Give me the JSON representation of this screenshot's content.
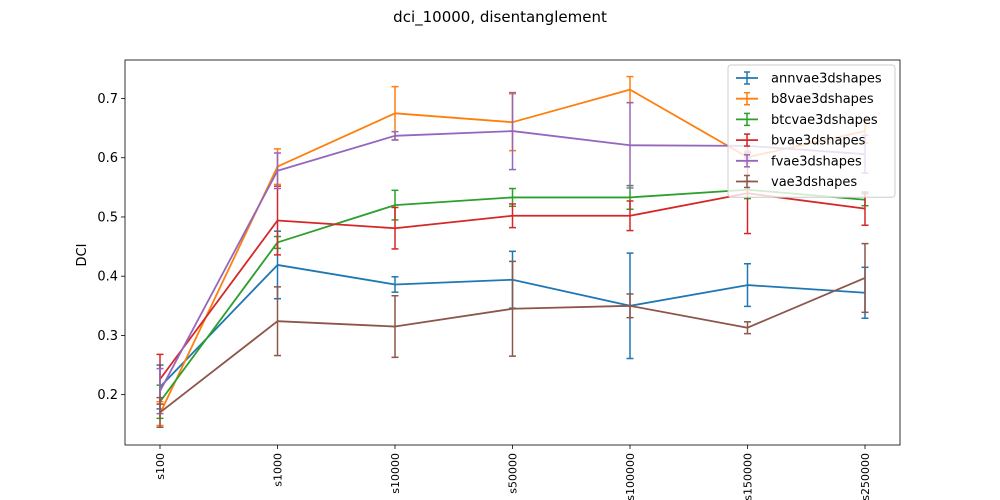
{
  "chart_data": {
    "type": "line",
    "title": "dci_10000, disentanglement",
    "xlabel": "",
    "ylabel": "DCI",
    "categories": [
      "s100",
      "s1000",
      "s10000",
      "s50000",
      "s100000",
      "s150000",
      "s250000"
    ],
    "ylim": [
      0.115,
      0.765
    ],
    "yticks": [
      0.2,
      0.3,
      0.4,
      0.5,
      0.6,
      0.7
    ],
    "ytick_labels": [
      "0.2",
      "0.3",
      "0.4",
      "0.5",
      "0.6",
      "0.7"
    ],
    "grid": false,
    "legend_position": "top-right",
    "series": [
      {
        "name": "annvae3dshapes",
        "color": "#1f77b4",
        "values": [
          0.213,
          0.419,
          0.386,
          0.394,
          0.35,
          0.385,
          0.372
        ],
        "errors": [
          0.037,
          0.057,
          0.013,
          0.048,
          0.089,
          0.036,
          0.043
        ]
      },
      {
        "name": "b8vae3dshapes",
        "color": "#ff7f0e",
        "values": [
          0.168,
          0.585,
          0.675,
          0.66,
          0.715,
          0.601,
          0.645
        ],
        "errors": [
          0.02,
          0.03,
          0.045,
          0.048,
          0.022,
          0.01,
          0.02
        ]
      },
      {
        "name": "btcvae3dshapes",
        "color": "#2ca02c",
        "values": [
          0.188,
          0.457,
          0.52,
          0.533,
          0.533,
          0.546,
          0.529
        ],
        "errors": [
          0.028,
          0.01,
          0.025,
          0.015,
          0.02,
          0.015,
          0.01
        ]
      },
      {
        "name": "bvae3dshapes",
        "color": "#d62728",
        "values": [
          0.226,
          0.494,
          0.481,
          0.502,
          0.502,
          0.54,
          0.514
        ],
        "errors": [
          0.042,
          0.058,
          0.035,
          0.02,
          0.025,
          0.068,
          0.028
        ]
      },
      {
        "name": "fvae3dshapes",
        "color": "#9467bd",
        "values": [
          0.206,
          0.578,
          0.637,
          0.645,
          0.621,
          0.62,
          0.606
        ],
        "errors": [
          0.038,
          0.03,
          0.007,
          0.065,
          0.072,
          0.02,
          0.032
        ]
      },
      {
        "name": "vae3dshapes",
        "color": "#8c564b",
        "values": [
          0.17,
          0.324,
          0.315,
          0.345,
          0.35,
          0.313,
          0.397
        ],
        "errors": [
          0.025,
          0.058,
          0.052,
          0.08,
          0.02,
          0.01,
          0.058
        ]
      }
    ]
  }
}
